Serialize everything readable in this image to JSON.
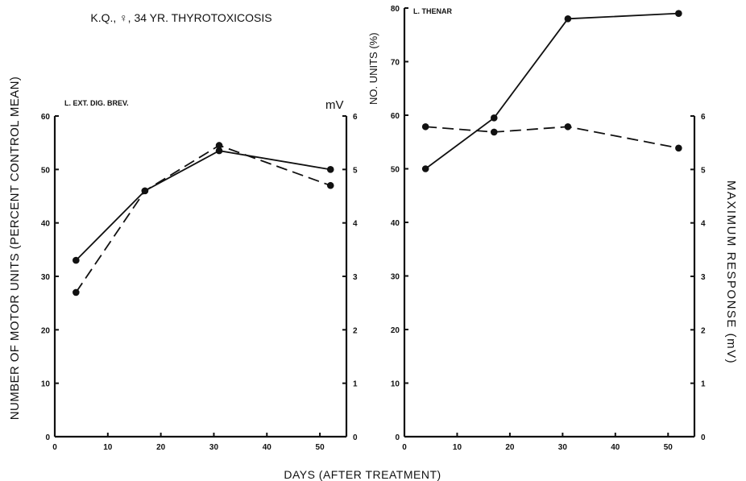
{
  "figure": {
    "title": "K.Q., ♀, 34 YR.   THYROTOXICOSIS",
    "x_label": "DAYS (AFTER TREATMENT)",
    "y_label_left": "NUMBER OF MOTOR UNITS (PERCENT CONTROL MEAN)",
    "y_label_right": "MAXIMUM  RESPONSE (mV)"
  },
  "chart_data": [
    {
      "type": "line",
      "panel_label": "L. EXT. DIG. BREV.",
      "right_unit_label": "mV",
      "xlim": [
        0,
        55
      ],
      "xticks": [
        "0",
        "10",
        "20",
        "30",
        "40",
        "50"
      ],
      "ylim_left": [
        0,
        60
      ],
      "yticks_left": [
        "0",
        "10",
        "20",
        "30",
        "40",
        "50",
        "60"
      ],
      "ylim_right": [
        0,
        6
      ],
      "yticks_right": [
        "0",
        "1",
        "2",
        "3",
        "4",
        "5",
        "6"
      ],
      "grid": false,
      "series": [
        {
          "style": "solid",
          "axis": "left",
          "x": [
            4,
            17,
            31,
            52
          ],
          "y": [
            33,
            46,
            53.5,
            50
          ]
        },
        {
          "style": "dashed",
          "axis": "right",
          "x": [
            4,
            17,
            31,
            52
          ],
          "y": [
            2.7,
            4.6,
            5.45,
            4.7
          ]
        }
      ]
    },
    {
      "type": "line",
      "panel_label": "L. THENAR",
      "left_axis_label": "NO. UNITS (%)",
      "xlim": [
        0,
        55
      ],
      "xticks": [
        "0",
        "10",
        "20",
        "30",
        "40",
        "50"
      ],
      "ylim_left": [
        0,
        80
      ],
      "yticks_left": [
        "0",
        "10",
        "20",
        "30",
        "40",
        "50",
        "60",
        "70",
        "80"
      ],
      "ylim_right": [
        0,
        6
      ],
      "yticks_right": [
        "0",
        "1",
        "2",
        "3",
        "4",
        "5",
        "6"
      ],
      "grid": false,
      "series": [
        {
          "style": "solid",
          "axis": "left",
          "x": [
            4,
            17,
            31,
            52
          ],
          "y": [
            50,
            59.5,
            78,
            79
          ]
        },
        {
          "style": "dashed",
          "axis": "right",
          "x": [
            4,
            17,
            31,
            52
          ],
          "y": [
            5.8,
            5.7,
            5.8,
            5.4
          ]
        }
      ]
    }
  ]
}
